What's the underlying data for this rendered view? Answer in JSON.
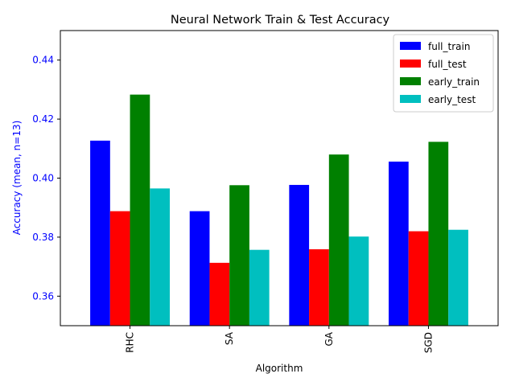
{
  "chart_data": {
    "type": "bar",
    "title": "Neural Network Train & Test Accuracy",
    "xlabel": "Algorithm",
    "ylabel": "Accuracy (mean, n=13)",
    "ylim": [
      0.35,
      0.45
    ],
    "yticks": [
      0.36,
      0.38,
      0.4,
      0.42,
      0.44
    ],
    "ytick_labels": [
      "0.36",
      "0.38",
      "0.40",
      "0.42",
      "0.44"
    ],
    "categories": [
      "RHC",
      "SA",
      "GA",
      "SGD"
    ],
    "series": [
      {
        "name": "full_train",
        "color": "#0000ff",
        "values": [
          0.4127,
          0.3888,
          0.3977,
          0.4056
        ]
      },
      {
        "name": "full_test",
        "color": "#ff0000",
        "values": [
          0.3888,
          0.3713,
          0.3759,
          0.382
        ]
      },
      {
        "name": "early_train",
        "color": "#008000",
        "values": [
          0.4283,
          0.3976,
          0.408,
          0.4123
        ]
      },
      {
        "name": "early_test",
        "color": "#00bfbf",
        "values": [
          0.3965,
          0.3757,
          0.3802,
          0.3825
        ]
      }
    ],
    "legend_position": "top-right",
    "ylabel_color": "#0000ff",
    "ytick_color": "#0000ff",
    "grid": false
  }
}
